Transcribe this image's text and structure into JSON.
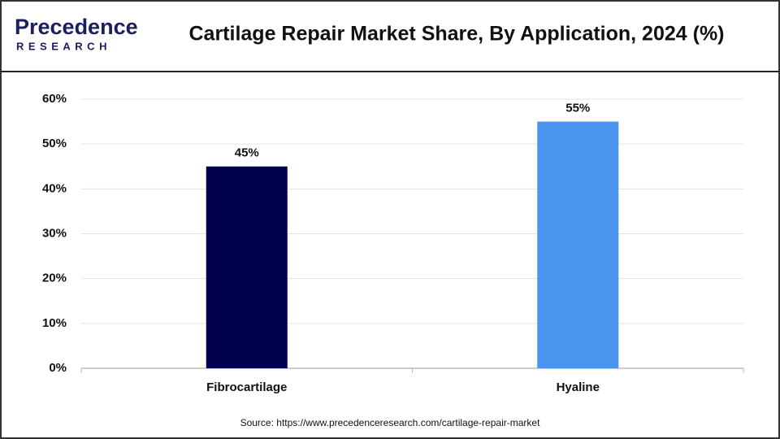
{
  "logo": {
    "name": "Precedence",
    "tagline": "RESEARCH"
  },
  "chart_data": {
    "type": "bar",
    "title": "Cartilage Repair Market Share, By Application, 2024 (%)",
    "categories": [
      "Fibrocartilage",
      "Hyaline"
    ],
    "values": [
      45,
      55
    ],
    "value_labels": [
      "45%",
      "55%"
    ],
    "colors": [
      "#00004d",
      "#4a94ee"
    ],
    "ylim": [
      0,
      60
    ],
    "yticks": [
      {
        "value": 0,
        "label": "0%"
      },
      {
        "value": 10,
        "label": "10%"
      },
      {
        "value": 20,
        "label": "20%"
      },
      {
        "value": 30,
        "label": "30%"
      },
      {
        "value": 40,
        "label": "40%"
      },
      {
        "value": 50,
        "label": "50%"
      },
      {
        "value": 60,
        "label": "60%"
      }
    ],
    "grid": true,
    "source": "Source: https://www.precedenceresearch.com/cartilage-repair-market"
  }
}
